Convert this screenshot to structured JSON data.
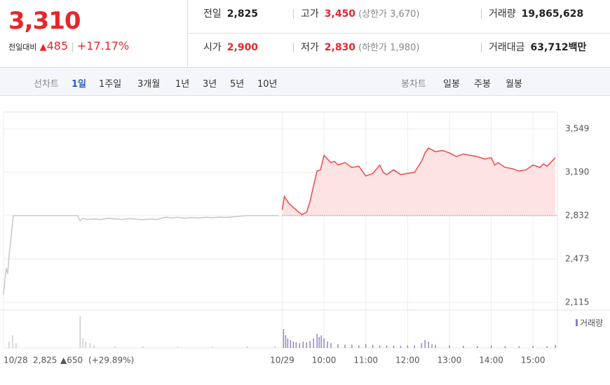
{
  "header": {
    "price": "3,310",
    "change_label": "전일대비",
    "change": "485",
    "change_pct": "+17.17%",
    "rows": [
      [
        {
          "label": "전일",
          "value": "2,825"
        },
        {
          "label": "고가",
          "value": "3,450",
          "extra": "(상한가 3,670)"
        },
        {
          "label": "거래량",
          "value": "19,865,628"
        }
      ],
      [
        {
          "label": "시가",
          "value": "2,900"
        },
        {
          "label": "저가",
          "value": "2,830",
          "extra": "(하한가 1,980)"
        },
        {
          "label": "거래대금",
          "value": "63,712",
          "unit": "백만"
        }
      ]
    ]
  },
  "toolbar": {
    "line_label": "선차트",
    "line_periods": [
      "1일",
      "1주일",
      "3개월",
      "1년",
      "3년",
      "5년",
      "10년"
    ],
    "candle_label": "봉차트",
    "candle_periods": [
      "일봉",
      "주봉",
      "월봉"
    ]
  },
  "chart_data": {
    "type": "line",
    "xlim": [
      0,
      795
    ],
    "xticks": [
      {
        "value": 0,
        "label": "10/28"
      },
      {
        "value": 400,
        "label": "10/29"
      },
      {
        "value": 460,
        "label": "10:00"
      },
      {
        "value": 520,
        "label": "11:00"
      },
      {
        "value": 580,
        "label": "12:00"
      },
      {
        "value": 640,
        "label": "13:00"
      },
      {
        "value": 700,
        "label": "14:00"
      },
      {
        "value": 760,
        "label": "15:00"
      }
    ],
    "ylim": [
      2115,
      3549
    ],
    "yticks": [
      {
        "value": 2115,
        "label": "2,115"
      },
      {
        "value": 2473,
        "label": "2,473"
      },
      {
        "value": 2832,
        "label": "2,832"
      },
      {
        "value": 3190,
        "label": "3,190"
      },
      {
        "value": 3549,
        "label": "3,549"
      }
    ],
    "grid": true,
    "baseline": 2832,
    "prev_day_note": [
      "2,825",
      "▲650",
      "(+29.89%)"
    ],
    "series": [
      {
        "color": "#c8c8c8",
        "x": [
          0,
          2,
          4,
          6,
          8,
          10,
          14,
          18,
          30,
          60,
          100,
          106,
          110,
          114,
          120,
          130,
          140,
          150,
          160,
          170,
          180,
          190,
          200,
          210,
          220,
          230,
          235,
          240,
          250,
          260,
          270,
          280,
          290,
          300,
          310,
          320,
          330,
          340,
          350,
          360,
          370,
          380,
          395
        ],
        "values": [
          2180,
          2300,
          2400,
          2350,
          2500,
          2600,
          2832,
          2832,
          2832,
          2832,
          2832,
          2832,
          2790,
          2810,
          2800,
          2805,
          2800,
          2810,
          2805,
          2800,
          2808,
          2803,
          2798,
          2805,
          2800,
          2815,
          2820,
          2812,
          2818,
          2810,
          2815,
          2812,
          2818,
          2815,
          2820,
          2817,
          2822,
          2828,
          2832,
          2832,
          2832,
          2832,
          2832
        ]
      },
      {
        "color": "#f04a4a",
        "fill": "#fde3e3",
        "x": [
          400,
          403,
          410,
          420,
          428,
          435,
          440,
          445,
          450,
          455,
          460,
          465,
          470,
          475,
          480,
          490,
          500,
          510,
          520,
          530,
          540,
          545,
          550,
          560,
          570,
          580,
          590,
          600,
          605,
          610,
          620,
          630,
          640,
          650,
          660,
          670,
          680,
          690,
          700,
          705,
          710,
          720,
          730,
          740,
          750,
          760,
          770,
          775,
          780,
          792
        ],
        "values": [
          2880,
          2990,
          2930,
          2880,
          2840,
          2860,
          2950,
          3080,
          3200,
          3210,
          3330,
          3300,
          3270,
          3280,
          3250,
          3270,
          3230,
          3240,
          3160,
          3180,
          3250,
          3190,
          3170,
          3210,
          3170,
          3180,
          3190,
          3280,
          3350,
          3390,
          3360,
          3370,
          3350,
          3320,
          3340,
          3330,
          3320,
          3300,
          3310,
          3250,
          3270,
          3230,
          3220,
          3200,
          3210,
          3250,
          3230,
          3260,
          3240,
          3310
        ]
      }
    ],
    "volume": {
      "name": "거래량",
      "color": "#8e7cc3",
      "prev_color": "#c8c8c8",
      "max": 100,
      "series": [
        {
          "x": [
            8,
            13,
            18,
            110,
            114,
            118,
            124,
            130,
            160,
            200,
            250,
            300,
            350,
            390
          ],
          "values": [
            20,
            40,
            15,
            100,
            30,
            20,
            15,
            8,
            5,
            5,
            4,
            4,
            5,
            6
          ]
        },
        {
          "x": [
            402,
            405,
            408,
            412,
            416,
            420,
            425,
            430,
            435,
            440,
            445,
            450,
            453,
            456,
            460,
            465,
            470,
            480,
            490,
            500,
            510,
            520,
            530,
            540,
            550,
            560,
            570,
            580,
            590,
            600,
            605,
            610,
            615,
            620,
            640,
            660,
            680,
            700,
            720,
            740,
            760,
            780,
            792
          ],
          "values": [
            60,
            40,
            30,
            25,
            20,
            18,
            15,
            20,
            18,
            22,
            30,
            45,
            35,
            40,
            30,
            20,
            15,
            12,
            10,
            10,
            8,
            12,
            10,
            8,
            8,
            7,
            6,
            8,
            8,
            15,
            25,
            20,
            12,
            10,
            8,
            7,
            6,
            8,
            6,
            5,
            6,
            5,
            10
          ]
        }
      ]
    }
  }
}
